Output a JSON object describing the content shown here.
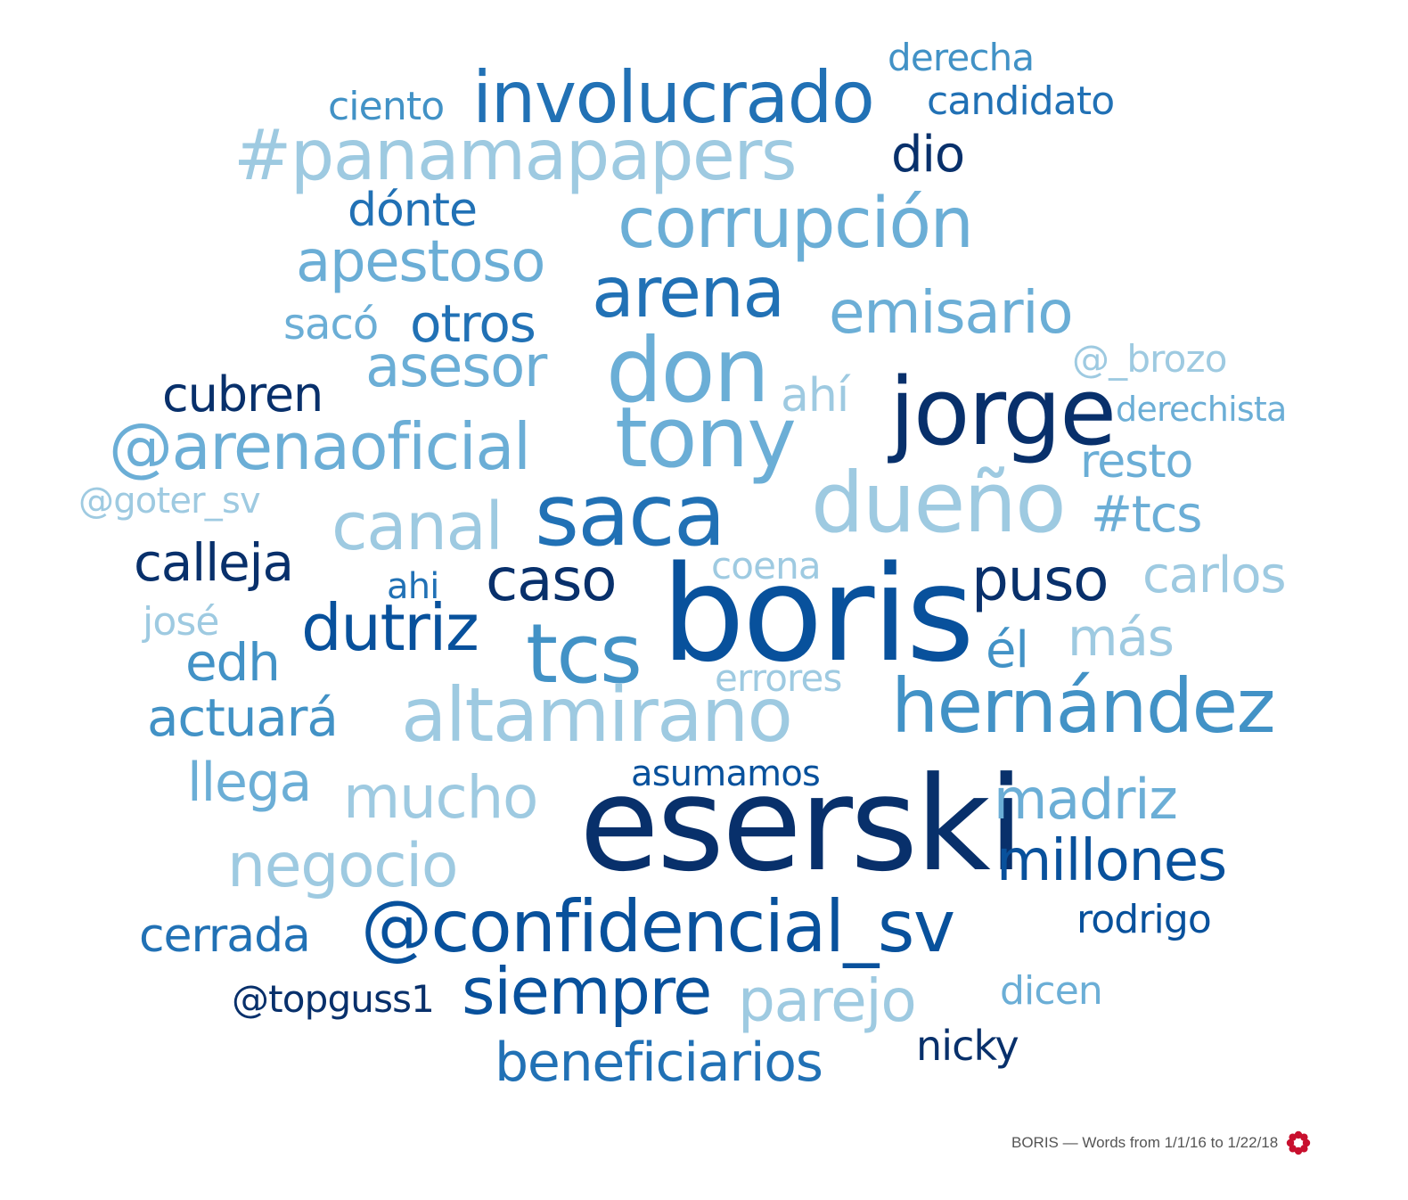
{
  "footer": {
    "caption": "BORIS — Words from 1/1/16 to 1/22/18",
    "logo_icon": "flower-icon",
    "logo_color": "#c8102e"
  },
  "words": [
    {
      "text": "boris",
      "color": "#08519c"
    },
    {
      "text": "eserski",
      "color": "#08306b"
    },
    {
      "text": "jorge",
      "color": "#08306b"
    },
    {
      "text": "don",
      "color": "#6baed6"
    },
    {
      "text": "tony",
      "color": "#6baed6"
    },
    {
      "text": "saca",
      "color": "#2171b5"
    },
    {
      "text": "dueño",
      "color": "#9ecae1"
    },
    {
      "text": "tcs",
      "color": "#4292c6"
    },
    {
      "text": "altamirano",
      "color": "#9ecae1"
    },
    {
      "text": "hernández",
      "color": "#4292c6"
    },
    {
      "text": "involucrado",
      "color": "#2171b5"
    },
    {
      "text": "#panamapapers",
      "color": "#9ecae1"
    },
    {
      "text": "corrupción",
      "color": "#6baed6"
    },
    {
      "text": "arena",
      "color": "#2171b5"
    },
    {
      "text": "@confidencial_sv",
      "color": "#08519c"
    },
    {
      "text": "siempre",
      "color": "#08519c"
    },
    {
      "text": "@arenaoficial",
      "color": "#6baed6"
    },
    {
      "text": "emisario",
      "color": "#6baed6"
    },
    {
      "text": "canal",
      "color": "#9ecae1"
    },
    {
      "text": "apestoso",
      "color": "#6baed6"
    },
    {
      "text": "asesor",
      "color": "#6baed6"
    },
    {
      "text": "dutriz",
      "color": "#08519c"
    },
    {
      "text": "caso",
      "color": "#08306b"
    },
    {
      "text": "puso",
      "color": "#08306b"
    },
    {
      "text": "mucho",
      "color": "#9ecae1"
    },
    {
      "text": "negocio",
      "color": "#9ecae1"
    },
    {
      "text": "parejo",
      "color": "#9ecae1"
    },
    {
      "text": "madriz",
      "color": "#6baed6"
    },
    {
      "text": "millones",
      "color": "#08519c"
    },
    {
      "text": "beneficiarios",
      "color": "#2171b5"
    },
    {
      "text": "otros",
      "color": "#2171b5"
    },
    {
      "text": "cubren",
      "color": "#08306b"
    },
    {
      "text": "calleja",
      "color": "#08306b"
    },
    {
      "text": "edh",
      "color": "#4292c6"
    },
    {
      "text": "actuará",
      "color": "#4292c6"
    },
    {
      "text": "llega",
      "color": "#6baed6"
    },
    {
      "text": "cerrada",
      "color": "#2171b5"
    },
    {
      "text": "resto",
      "color": "#6baed6"
    },
    {
      "text": "#tcs",
      "color": "#6baed6"
    },
    {
      "text": "carlos",
      "color": "#9ecae1"
    },
    {
      "text": "él",
      "color": "#4292c6"
    },
    {
      "text": "más",
      "color": "#9ecae1"
    },
    {
      "text": "dio",
      "color": "#08306b"
    },
    {
      "text": "dónte",
      "color": "#2171b5"
    },
    {
      "text": "candidato",
      "color": "#2171b5"
    },
    {
      "text": "sacó",
      "color": "#6baed6"
    },
    {
      "text": "ahí",
      "color": "#9ecae1"
    },
    {
      "text": "rodrigo",
      "color": "#08519c"
    },
    {
      "text": "ciento",
      "color": "#4292c6"
    },
    {
      "text": "derecha",
      "color": "#4292c6"
    },
    {
      "text": "@_brozo",
      "color": "#9ecae1"
    },
    {
      "text": "derechista",
      "color": "#6baed6"
    },
    {
      "text": "@goter_sv",
      "color": "#9ecae1"
    },
    {
      "text": "coena",
      "color": "#9ecae1"
    },
    {
      "text": "ahi",
      "color": "#2171b5"
    },
    {
      "text": "josé",
      "color": "#9ecae1"
    },
    {
      "text": "errores",
      "color": "#9ecae1"
    },
    {
      "text": "asumamos",
      "color": "#08519c"
    },
    {
      "text": "@topguss1",
      "color": "#08306b"
    },
    {
      "text": "dicen",
      "color": "#6baed6"
    },
    {
      "text": "nicky",
      "color": "#08306b"
    }
  ]
}
